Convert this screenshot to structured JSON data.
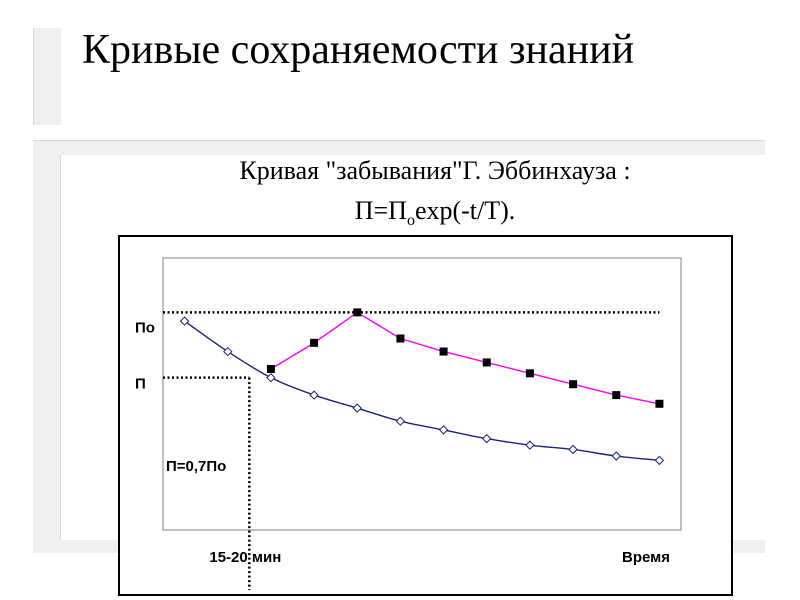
{
  "slide": {
    "title": "Кривые сохраняемости знаний",
    "subtitle_line1": "Кривая \"забывания\"Г. Эббинхауза :",
    "formula_left": "П=П",
    "formula_sub": "о",
    "formula_right": "exp(-t/T)."
  },
  "colors": {
    "forgetting_curve": "#1a237e",
    "repetition_curve": "#ff00ff",
    "marker_fill": "#000000",
    "frame": "#000000"
  },
  "chart_data": {
    "type": "line",
    "title": "",
    "xlabel": "Время",
    "ylabel": "",
    "xlim": [
      0,
      12
    ],
    "ylim": [
      0,
      1.25
    ],
    "grid": false,
    "legend": "none",
    "y_ticks": [
      {
        "value": 1.0,
        "label": "По"
      },
      {
        "value": 0.7,
        "label": "П"
      }
    ],
    "x_ticks": [
      {
        "value": 2,
        "label": "15-20 мин"
      }
    ],
    "annotations": [
      {
        "text": "П=0,7По"
      }
    ],
    "reference_lines": [
      {
        "type": "horizontal",
        "y": 1.0,
        "x_from": 0,
        "x_to": 11.5
      },
      {
        "type": "horizontal",
        "y": 0.7,
        "x_from": 0,
        "x_to": 2
      },
      {
        "type": "vertical",
        "x": 2,
        "y_from": 0,
        "y_to": 0.7
      }
    ],
    "series": [
      {
        "marker": "diamond",
        "x": [
          0.5,
          1.5,
          2.5,
          3.5,
          4.5,
          5.5,
          6.5,
          7.5,
          8.5,
          9.5,
          10.5,
          11.5
        ],
        "y": [
          0.96,
          0.82,
          0.7,
          0.62,
          0.56,
          0.5,
          0.46,
          0.42,
          0.39,
          0.37,
          0.34,
          0.32
        ]
      },
      {
        "marker": "square",
        "x": [
          2.5,
          3.5,
          4.5,
          5.5,
          6.5,
          7.5,
          8.5,
          9.5,
          10.5,
          11.5
        ],
        "y": [
          0.74,
          0.86,
          1.0,
          0.88,
          0.82,
          0.77,
          0.72,
          0.67,
          0.62,
          0.58
        ]
      }
    ]
  }
}
